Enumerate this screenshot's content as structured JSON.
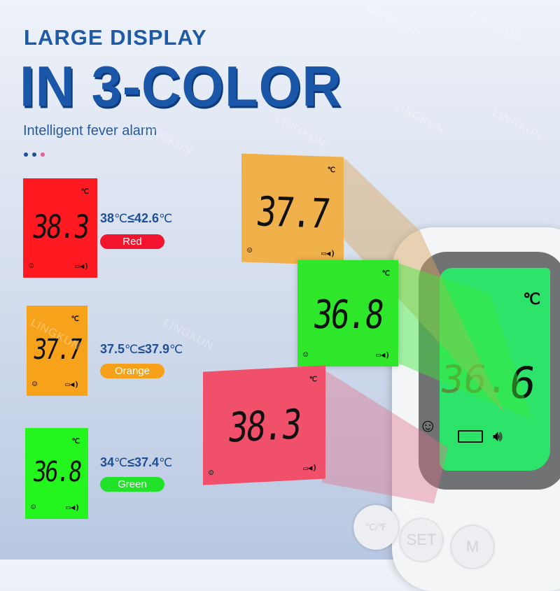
{
  "header": {
    "line1": "LARGE DISPLAY",
    "line2": "IN 3-COLOR",
    "subtitle": "Intelligent fever alarm"
  },
  "dots": [
    "#1f4f95",
    "#1f4f95",
    "#e8609a"
  ],
  "watermark": "LINGKUN",
  "unit": "℃",
  "levels": [
    {
      "reading": "38.3",
      "range_low": "38",
      "range_high": "42.6",
      "label": "Red",
      "color": "#f2142e",
      "lcd": "#ff1a22"
    },
    {
      "reading": "37.7",
      "range_low": "37.5",
      "range_high": "37.9",
      "label": "Orange",
      "color": "#f7a01a",
      "lcd": "#f7a21b"
    },
    {
      "reading": "36.8",
      "range_low": "34",
      "range_high": "37.4",
      "label": "Green",
      "color": "#22e22a",
      "lcd": "#25f51f"
    }
  ],
  "floating": [
    {
      "reading": "37.7",
      "color": "#f0b04a"
    },
    {
      "reading": "36.8",
      "color": "#2ee62a"
    },
    {
      "reading": "38.3",
      "color": "#f0506a"
    }
  ],
  "device": {
    "reading_dim": "36.",
    "reading_digit": "6",
    "unit": "℃",
    "buttons": [
      "℃/℉",
      "SET",
      "M"
    ]
  },
  "icons": {
    "smile": "smiley-icon",
    "battery": "battery-icon",
    "speaker": "speaker-icon"
  }
}
